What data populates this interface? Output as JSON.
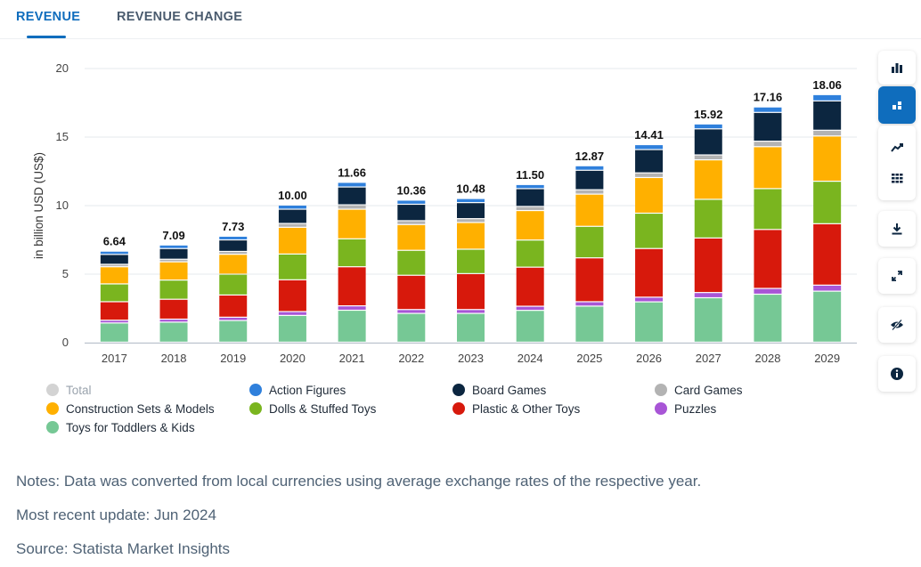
{
  "tabs": [
    {
      "label": "REVENUE",
      "active": true
    },
    {
      "label": "REVENUE CHANGE",
      "active": false
    }
  ],
  "chart_data": {
    "type": "bar",
    "stacked": true,
    "title": "",
    "xlabel": "",
    "ylabel": "in billion USD (US$)",
    "ylim": [
      0,
      20
    ],
    "yticks": [
      0,
      5,
      10,
      15,
      20
    ],
    "grid": true,
    "legend_position": "bottom",
    "categories": [
      "2017",
      "2018",
      "2019",
      "2020",
      "2021",
      "2022",
      "2023",
      "2024",
      "2025",
      "2026",
      "2027",
      "2028",
      "2029"
    ],
    "totals": [
      6.64,
      7.09,
      7.73,
      10.0,
      11.66,
      10.36,
      10.48,
      11.5,
      12.87,
      14.41,
      15.92,
      17.16,
      18.06
    ],
    "total_labels": [
      "6.64",
      "7.09",
      "7.73",
      "10.00",
      "11.66",
      "10.36",
      "10.48",
      "11.50",
      "12.87",
      "14.41",
      "15.92",
      "17.16",
      "18.06"
    ],
    "series": [
      {
        "name": "Toys for Toddlers & Kids",
        "color": "#76c895",
        "values": [
          1.4,
          1.46,
          1.58,
          1.95,
          2.33,
          2.1,
          2.1,
          2.32,
          2.63,
          2.94,
          3.24,
          3.5,
          3.72
        ]
      },
      {
        "name": "Puzzles",
        "color": "#a855d6",
        "values": [
          0.2,
          0.22,
          0.24,
          0.28,
          0.32,
          0.28,
          0.28,
          0.3,
          0.32,
          0.34,
          0.38,
          0.42,
          0.44
        ]
      },
      {
        "name": "Plastic & Other Toys",
        "color": "#d7190c",
        "values": [
          1.35,
          1.45,
          1.62,
          2.32,
          2.85,
          2.5,
          2.62,
          2.85,
          3.2,
          3.55,
          3.98,
          4.3,
          4.48
        ]
      },
      {
        "name": "Dolls & Stuffed Toys",
        "color": "#7ab51f",
        "values": [
          1.3,
          1.4,
          1.52,
          1.88,
          2.04,
          1.82,
          1.78,
          1.98,
          2.3,
          2.58,
          2.82,
          2.98,
          3.1
        ]
      },
      {
        "name": "Construction Sets & Models",
        "color": "#ffb000",
        "values": [
          1.25,
          1.33,
          1.45,
          1.95,
          2.16,
          1.88,
          1.95,
          2.15,
          2.35,
          2.6,
          2.88,
          3.06,
          3.3
        ]
      },
      {
        "name": "Card Games",
        "color": "#b3b3b3",
        "values": [
          0.18,
          0.19,
          0.21,
          0.28,
          0.32,
          0.28,
          0.28,
          0.3,
          0.32,
          0.34,
          0.36,
          0.4,
          0.42
        ]
      },
      {
        "name": "Board Games",
        "color": "#0c2640",
        "values": [
          0.72,
          0.78,
          0.84,
          1.04,
          1.3,
          1.2,
          1.17,
          1.3,
          1.42,
          1.7,
          1.9,
          2.1,
          2.14
        ]
      },
      {
        "name": "Action Figures",
        "color": "#2f80dc",
        "values": [
          0.24,
          0.26,
          0.27,
          0.3,
          0.34,
          0.3,
          0.3,
          0.3,
          0.33,
          0.36,
          0.36,
          0.4,
          0.46
        ]
      }
    ]
  },
  "legend": [
    {
      "label": "Total",
      "color": "#d3d3d3",
      "muted": true
    },
    {
      "label": "Action Figures",
      "color": "#2f80dc"
    },
    {
      "label": "Board Games",
      "color": "#0c2640"
    },
    {
      "label": "Card Games",
      "color": "#b3b3b3"
    },
    {
      "label": "Construction Sets & Models",
      "color": "#ffb000"
    },
    {
      "label": "Dolls & Stuffed Toys",
      "color": "#7ab51f"
    },
    {
      "label": "Plastic & Other Toys",
      "color": "#d7190c"
    },
    {
      "label": "Puzzles",
      "color": "#a855d6"
    },
    {
      "label": "Toys for Toddlers & Kids",
      "color": "#76c895"
    }
  ],
  "sidebar_icons": [
    {
      "name": "bar-chart-icon",
      "active": false
    },
    {
      "name": "stacked-bar-icon",
      "active": true
    },
    {
      "name": "trend-line-icon",
      "active": false
    },
    {
      "name": "table-icon",
      "active": false
    },
    {
      "name": "download-icon",
      "active": false
    },
    {
      "name": "fullscreen-icon",
      "active": false
    },
    {
      "name": "hide-icon",
      "active": false
    },
    {
      "name": "info-icon",
      "active": false
    }
  ],
  "notes": {
    "note": "Notes: Data was converted from local currencies using average exchange rates of the respective year.",
    "update": "Most recent update: Jun 2024",
    "source": "Source: Statista Market Insights"
  },
  "colors": {
    "accent": "#0f6dbd",
    "grid": "#e6e9ed",
    "axis_text": "#333333"
  }
}
